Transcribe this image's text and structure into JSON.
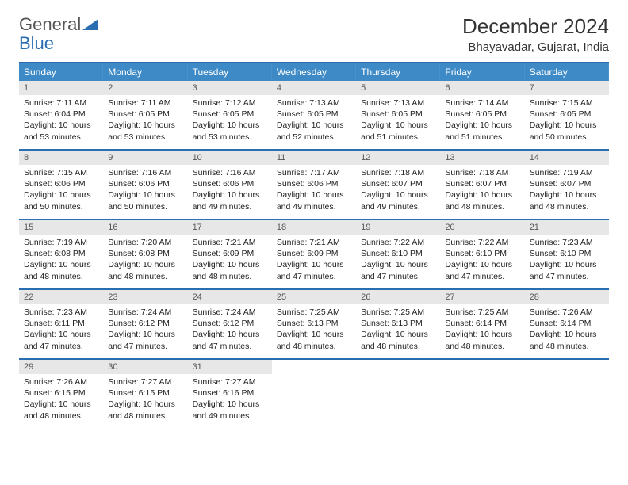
{
  "brand": {
    "text1": "General",
    "text2": "Blue",
    "icon_color": "#2a6db0"
  },
  "title": "December 2024",
  "location": "Bhayavadar, Gujarat, India",
  "theme": {
    "header_bg": "#3d8ac7",
    "header_text": "#ffffff",
    "border_color": "#2a6db0",
    "daynum_bg": "#e7e7e7",
    "daynum_text": "#555555",
    "body_text": "#222222",
    "page_bg": "#ffffff",
    "cell_fontsize": 10.5,
    "header_fontsize": 12,
    "title_fontsize": 26,
    "location_fontsize": 15
  },
  "day_headers": [
    "Sunday",
    "Monday",
    "Tuesday",
    "Wednesday",
    "Thursday",
    "Friday",
    "Saturday"
  ],
  "weeks": [
    [
      {
        "n": "1",
        "sr": "Sunrise: 7:11 AM",
        "ss": "Sunset: 6:04 PM",
        "dl": "Daylight: 10 hours and 53 minutes."
      },
      {
        "n": "2",
        "sr": "Sunrise: 7:11 AM",
        "ss": "Sunset: 6:05 PM",
        "dl": "Daylight: 10 hours and 53 minutes."
      },
      {
        "n": "3",
        "sr": "Sunrise: 7:12 AM",
        "ss": "Sunset: 6:05 PM",
        "dl": "Daylight: 10 hours and 53 minutes."
      },
      {
        "n": "4",
        "sr": "Sunrise: 7:13 AM",
        "ss": "Sunset: 6:05 PM",
        "dl": "Daylight: 10 hours and 52 minutes."
      },
      {
        "n": "5",
        "sr": "Sunrise: 7:13 AM",
        "ss": "Sunset: 6:05 PM",
        "dl": "Daylight: 10 hours and 51 minutes."
      },
      {
        "n": "6",
        "sr": "Sunrise: 7:14 AM",
        "ss": "Sunset: 6:05 PM",
        "dl": "Daylight: 10 hours and 51 minutes."
      },
      {
        "n": "7",
        "sr": "Sunrise: 7:15 AM",
        "ss": "Sunset: 6:05 PM",
        "dl": "Daylight: 10 hours and 50 minutes."
      }
    ],
    [
      {
        "n": "8",
        "sr": "Sunrise: 7:15 AM",
        "ss": "Sunset: 6:06 PM",
        "dl": "Daylight: 10 hours and 50 minutes."
      },
      {
        "n": "9",
        "sr": "Sunrise: 7:16 AM",
        "ss": "Sunset: 6:06 PM",
        "dl": "Daylight: 10 hours and 50 minutes."
      },
      {
        "n": "10",
        "sr": "Sunrise: 7:16 AM",
        "ss": "Sunset: 6:06 PM",
        "dl": "Daylight: 10 hours and 49 minutes."
      },
      {
        "n": "11",
        "sr": "Sunrise: 7:17 AM",
        "ss": "Sunset: 6:06 PM",
        "dl": "Daylight: 10 hours and 49 minutes."
      },
      {
        "n": "12",
        "sr": "Sunrise: 7:18 AM",
        "ss": "Sunset: 6:07 PM",
        "dl": "Daylight: 10 hours and 49 minutes."
      },
      {
        "n": "13",
        "sr": "Sunrise: 7:18 AM",
        "ss": "Sunset: 6:07 PM",
        "dl": "Daylight: 10 hours and 48 minutes."
      },
      {
        "n": "14",
        "sr": "Sunrise: 7:19 AM",
        "ss": "Sunset: 6:07 PM",
        "dl": "Daylight: 10 hours and 48 minutes."
      }
    ],
    [
      {
        "n": "15",
        "sr": "Sunrise: 7:19 AM",
        "ss": "Sunset: 6:08 PM",
        "dl": "Daylight: 10 hours and 48 minutes."
      },
      {
        "n": "16",
        "sr": "Sunrise: 7:20 AM",
        "ss": "Sunset: 6:08 PM",
        "dl": "Daylight: 10 hours and 48 minutes."
      },
      {
        "n": "17",
        "sr": "Sunrise: 7:21 AM",
        "ss": "Sunset: 6:09 PM",
        "dl": "Daylight: 10 hours and 48 minutes."
      },
      {
        "n": "18",
        "sr": "Sunrise: 7:21 AM",
        "ss": "Sunset: 6:09 PM",
        "dl": "Daylight: 10 hours and 47 minutes."
      },
      {
        "n": "19",
        "sr": "Sunrise: 7:22 AM",
        "ss": "Sunset: 6:10 PM",
        "dl": "Daylight: 10 hours and 47 minutes."
      },
      {
        "n": "20",
        "sr": "Sunrise: 7:22 AM",
        "ss": "Sunset: 6:10 PM",
        "dl": "Daylight: 10 hours and 47 minutes."
      },
      {
        "n": "21",
        "sr": "Sunrise: 7:23 AM",
        "ss": "Sunset: 6:10 PM",
        "dl": "Daylight: 10 hours and 47 minutes."
      }
    ],
    [
      {
        "n": "22",
        "sr": "Sunrise: 7:23 AM",
        "ss": "Sunset: 6:11 PM",
        "dl": "Daylight: 10 hours and 47 minutes."
      },
      {
        "n": "23",
        "sr": "Sunrise: 7:24 AM",
        "ss": "Sunset: 6:12 PM",
        "dl": "Daylight: 10 hours and 47 minutes."
      },
      {
        "n": "24",
        "sr": "Sunrise: 7:24 AM",
        "ss": "Sunset: 6:12 PM",
        "dl": "Daylight: 10 hours and 47 minutes."
      },
      {
        "n": "25",
        "sr": "Sunrise: 7:25 AM",
        "ss": "Sunset: 6:13 PM",
        "dl": "Daylight: 10 hours and 48 minutes."
      },
      {
        "n": "26",
        "sr": "Sunrise: 7:25 AM",
        "ss": "Sunset: 6:13 PM",
        "dl": "Daylight: 10 hours and 48 minutes."
      },
      {
        "n": "27",
        "sr": "Sunrise: 7:25 AM",
        "ss": "Sunset: 6:14 PM",
        "dl": "Daylight: 10 hours and 48 minutes."
      },
      {
        "n": "28",
        "sr": "Sunrise: 7:26 AM",
        "ss": "Sunset: 6:14 PM",
        "dl": "Daylight: 10 hours and 48 minutes."
      }
    ],
    [
      {
        "n": "29",
        "sr": "Sunrise: 7:26 AM",
        "ss": "Sunset: 6:15 PM",
        "dl": "Daylight: 10 hours and 48 minutes."
      },
      {
        "n": "30",
        "sr": "Sunrise: 7:27 AM",
        "ss": "Sunset: 6:15 PM",
        "dl": "Daylight: 10 hours and 48 minutes."
      },
      {
        "n": "31",
        "sr": "Sunrise: 7:27 AM",
        "ss": "Sunset: 6:16 PM",
        "dl": "Daylight: 10 hours and 49 minutes."
      },
      null,
      null,
      null,
      null
    ]
  ]
}
